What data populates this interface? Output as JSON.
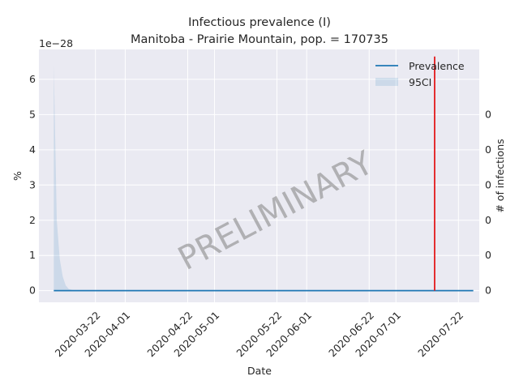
{
  "chart_data": {
    "type": "line",
    "title_line1": "Infectious prevalence (I)",
    "title_line2": "Manitoba - Prairie Mountain, pop. = 170735",
    "xlabel": "Date",
    "ylabel": "%",
    "ylabel_right": "# of infections",
    "y_offset_text": "1e−28",
    "watermark": "PRELIMINARY",
    "grid": true,
    "legend_position": "top-right",
    "x_ticks": [
      "2020-03-22",
      "2020-04-01",
      "2020-04-22",
      "2020-05-01",
      "2020-05-22",
      "2020-06-01",
      "2020-06-22",
      "2020-07-01",
      "2020-07-22"
    ],
    "y_ticks": [
      "0",
      "1",
      "2",
      "3",
      "4",
      "5",
      "6"
    ],
    "y_ticks_right": [
      "0",
      "0",
      "0",
      "0",
      "0",
      "0"
    ],
    "ylim": [
      -0.33,
      6.85
    ],
    "xlim": [
      "2020-03-03",
      "2020-07-29"
    ],
    "series": [
      {
        "name": "Prevalence",
        "color": "#1f77b4",
        "x": [
          "2020-03-08",
          "2020-07-27"
        ],
        "y": [
          0,
          0
        ]
      }
    ],
    "ci_band": {
      "name": "95CI",
      "color": "#1f77b4",
      "x": [
        "2020-03-08",
        "2020-03-08",
        "2020-03-09",
        "2020-03-10",
        "2020-03-11",
        "2020-03-12",
        "2020-03-13",
        "2020-03-15",
        "2020-07-27"
      ],
      "upper": [
        0,
        6.4,
        2.0,
        0.9,
        0.4,
        0.15,
        0.05,
        0,
        0
      ],
      "lower": [
        0,
        0,
        0,
        0,
        0,
        0,
        0,
        0,
        0
      ]
    },
    "vline": {
      "x": "2020-07-14",
      "color": "#e41a1c"
    }
  }
}
